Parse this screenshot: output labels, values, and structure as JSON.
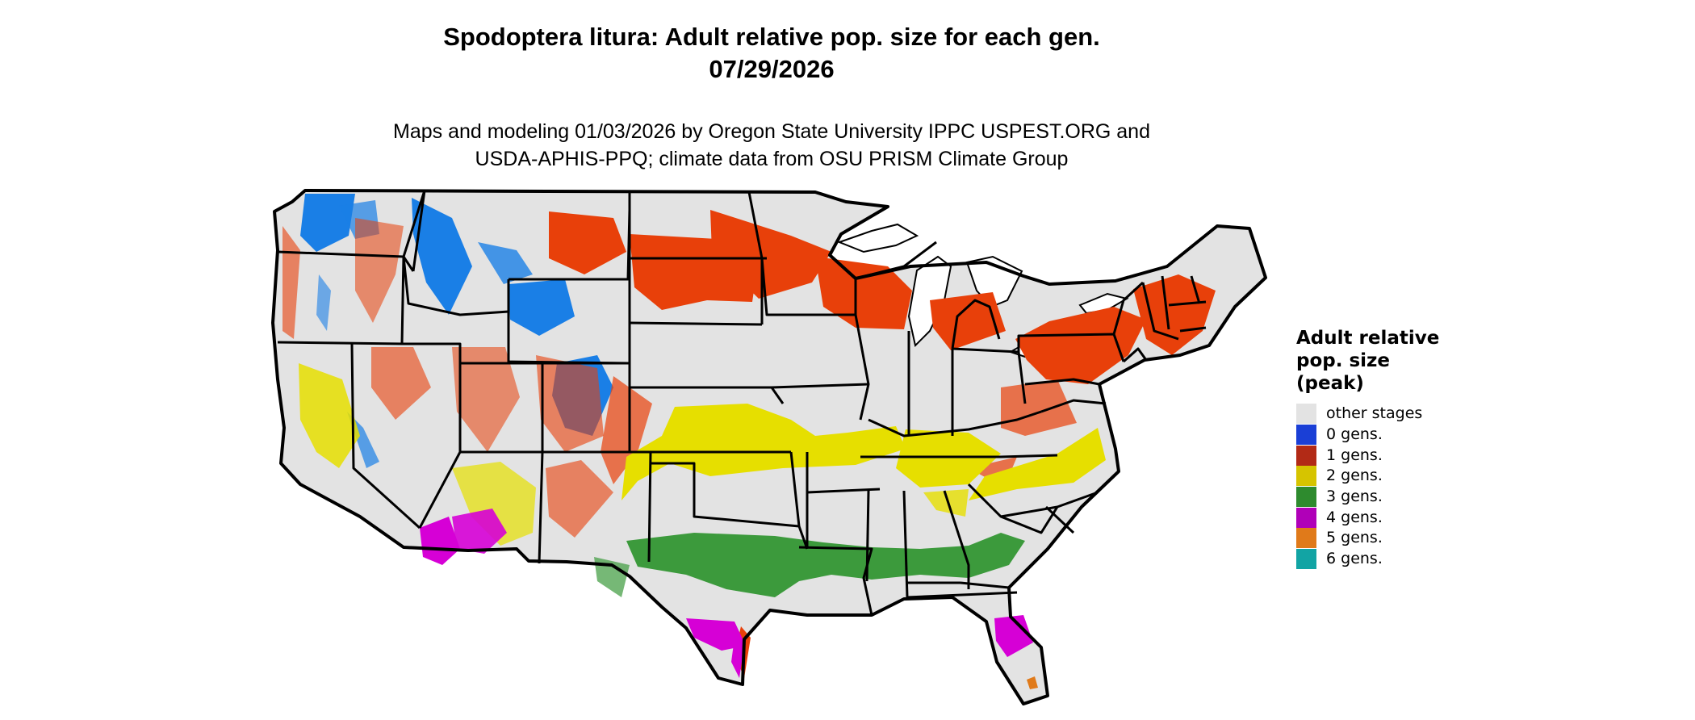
{
  "title": {
    "line1": "Spodoptera litura: Adult relative pop. size for each gen.",
    "line2": "07/29/2026"
  },
  "subtitle": {
    "line1": "Maps and modeling 01/03/2026 by Oregon State University IPPC USPEST.ORG and",
    "line2": "USDA-APHIS-PPQ; climate data from OSU PRISM Climate Group"
  },
  "legend": {
    "title_line1": "Adult relative",
    "title_line2": "pop. size",
    "title_line3": "(peak)",
    "items": [
      {
        "label": "other stages",
        "color": "#e3e3e3"
      },
      {
        "label": "0 gens.",
        "color": "#1a3fd6"
      },
      {
        "label": "1 gens.",
        "color": "#b22a16"
      },
      {
        "label": "2 gens.",
        "color": "#d6c400"
      },
      {
        "label": "3 gens.",
        "color": "#2e8b2e"
      },
      {
        "label": "4 gens.",
        "color": "#b000b8"
      },
      {
        "label": "5 gens.",
        "color": "#e07a1a"
      },
      {
        "label": "6 gens.",
        "color": "#12a4a4"
      }
    ]
  },
  "map_colors": {
    "land": "#e3e3e3",
    "border": "#000000",
    "water": "#ffffff",
    "gen0": "#1a7fe6",
    "gen1": "#e8400a",
    "gen2": "#e6df00",
    "gen3": "#3c9a3c",
    "gen4": "#d600d6",
    "gen5": "#e07a1a"
  }
}
